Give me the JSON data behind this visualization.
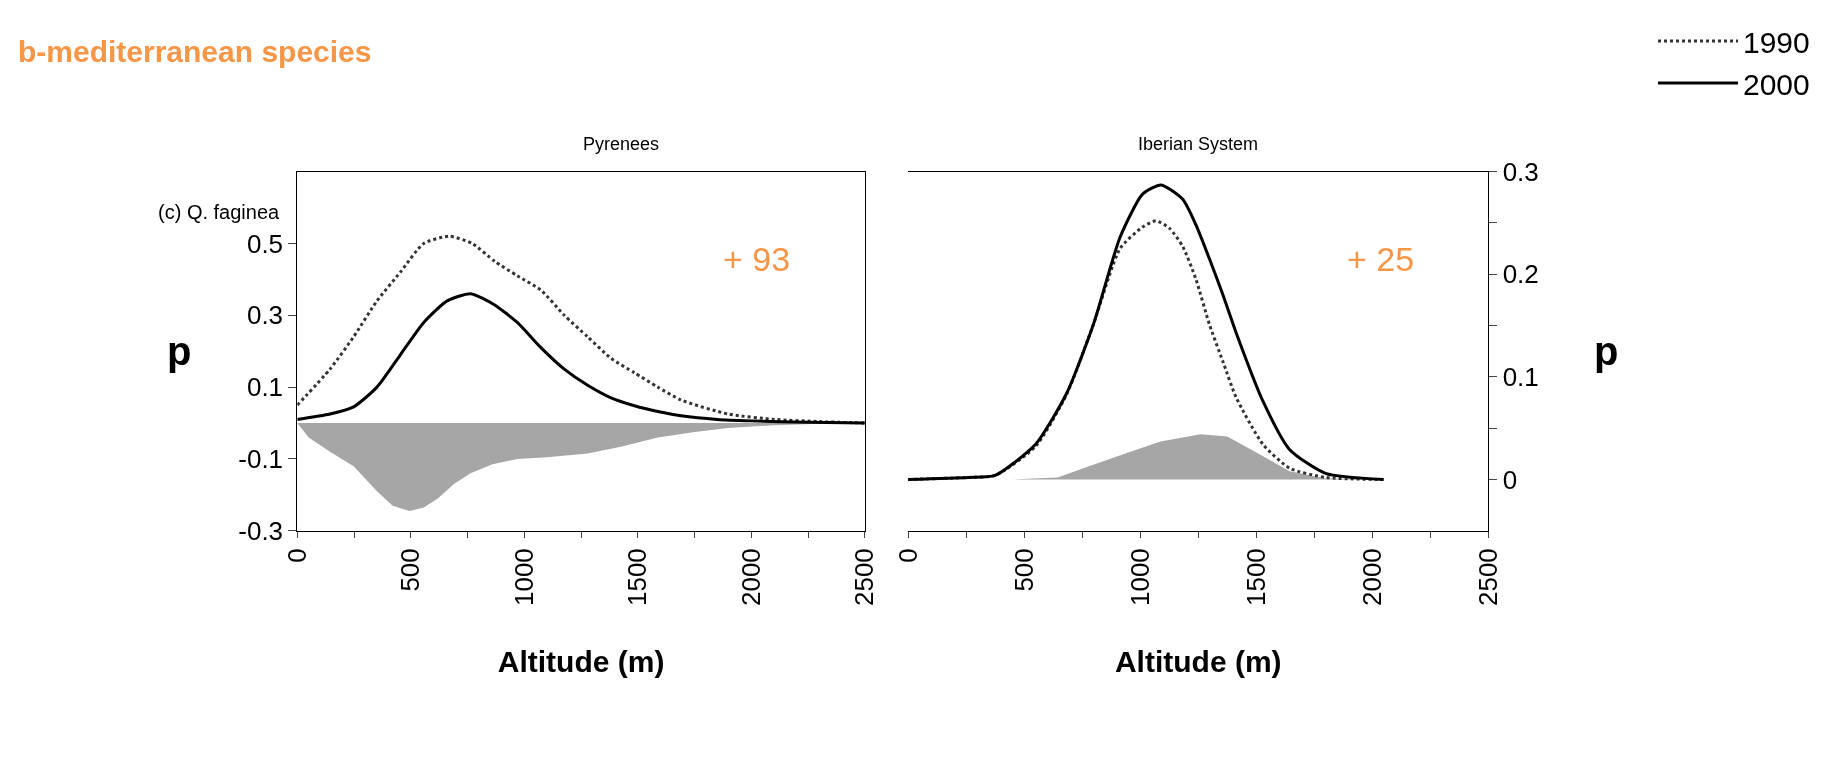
{
  "chart_data": [
    {
      "type": "line",
      "title": "b-mediterranean species",
      "subtitle": "Pyrenees",
      "xlabel": "Altitude (m)",
      "ylabel": "p",
      "annotations": [
        "(c) Q. faginea",
        "+ 93"
      ],
      "xlim": [
        0,
        2500
      ],
      "xticks": [
        0,
        {
          "value": 250,
          "label": null
        },
        500,
        {
          "value": 750,
          "label": null
        },
        1000,
        {
          "value": 1250,
          "label": null
        },
        1500,
        {
          "value": 1750,
          "label": null
        },
        2000,
        {
          "value": 2250,
          "label": null
        },
        2500
      ],
      "ylim": [
        -0.3,
        0.7
      ],
      "yticks": [
        -0.3,
        -0.1,
        0.1,
        0.3,
        0.5
      ],
      "legend": "top right",
      "marker": "none",
      "series": [
        {
          "type": "area",
          "color": "#a6a6a6",
          "x": [
            0,
            50,
            144,
            248,
            351,
            420,
            495,
            557,
            619,
            690,
            763,
            860,
            969,
            1100,
            1279,
            1430,
            1588,
            1750,
            1898,
            2100,
            2300,
            2500
          ],
          "values": [
            0,
            -0.04,
            -0.08,
            -0.12,
            -0.19,
            -0.23,
            -0.245,
            -0.235,
            -0.21,
            -0.17,
            -0.14,
            -0.115,
            -0.1,
            -0.095,
            -0.085,
            -0.065,
            -0.04,
            -0.025,
            -0.014,
            -0.006,
            -0.002,
            0
          ]
        },
        {
          "name": "1990",
          "color": "#333333",
          "line_style": "dotted",
          "x": [
            0,
            144,
            248,
            351,
            454,
            557,
            670,
            770,
            870,
            969,
            1073,
            1176,
            1279,
            1382,
            1485,
            1588,
            1691,
            1898,
            2104,
            2300,
            2500
          ],
          "values": [
            0.05,
            0.15,
            0.24,
            0.34,
            0.42,
            0.5,
            0.52,
            0.5,
            0.45,
            0.41,
            0.37,
            0.3,
            0.24,
            0.18,
            0.14,
            0.1,
            0.064,
            0.025,
            0.01,
            0.004,
            0
          ]
        },
        {
          "name": "2000",
          "color": "#000000",
          "line_style": "solid",
          "x": [
            0,
            144,
            248,
            351,
            454,
            557,
            660,
            763,
            866,
            969,
            1073,
            1176,
            1279,
            1382,
            1485,
            1588,
            1691,
            1850,
            2000,
            2250,
            2500
          ],
          "values": [
            0.01,
            0.025,
            0.045,
            0.1,
            0.19,
            0.28,
            0.34,
            0.36,
            0.33,
            0.28,
            0.21,
            0.15,
            0.105,
            0.07,
            0.048,
            0.032,
            0.02,
            0.01,
            0.006,
            0.002,
            0
          ]
        }
      ]
    },
    {
      "type": "line",
      "title": "Iberian System",
      "xlabel": "Altitude (m)",
      "y2label": "p",
      "annotations": [
        "+ 25"
      ],
      "xlim": [
        0,
        2500
      ],
      "xticks": [
        0,
        {
          "value": 250,
          "label": null
        },
        500,
        {
          "value": 750,
          "label": null
        },
        1000,
        {
          "value": 1250,
          "label": null
        },
        1500,
        {
          "value": 1750,
          "label": null
        },
        2000,
        {
          "value": 2250,
          "label": null
        },
        2500
      ],
      "y2lim": [
        -0.05,
        0.3
      ],
      "y2ticks": [
        0,
        {
          "value": 0.05,
          "label": null
        },
        0.1,
        {
          "value": 0.15,
          "label": null
        },
        0.2,
        {
          "value": 0.25,
          "label": null
        },
        0.3
      ],
      "marker": "none",
      "series": [
        {
          "type": "area",
          "axis": "y2",
          "color": "#a6a6a6",
          "x": [
            0,
            452,
            644,
            779,
            933,
            1087,
            1260,
            1375,
            1510,
            1644,
            1798,
            2048
          ],
          "values": [
            0,
            0,
            0.002,
            0.013,
            0.025,
            0.037,
            0.044,
            0.042,
            0.025,
            0.008,
            0.001,
            0
          ]
        },
        {
          "axis": "y2",
          "color": "#333333",
          "line_style": "dotted",
          "x": [
            0,
            260,
            375,
            548,
            683,
            798,
            913,
            1010,
            1067,
            1125,
            1183,
            1240,
            1298,
            1356,
            1413,
            1529,
            1644,
            1798,
            2048
          ],
          "values": [
            0,
            0.002,
            0.004,
            0.032,
            0.083,
            0.151,
            0.225,
            0.246,
            0.252,
            0.245,
            0.227,
            0.195,
            0.151,
            0.115,
            0.08,
            0.034,
            0.011,
            0.002,
            0
          ]
        },
        {
          "axis": "y2",
          "color": "#000000",
          "line_style": "solid",
          "x": [
            0,
            260,
            375,
            548,
            683,
            798,
            913,
            1010,
            1090,
            1183,
            1240,
            1298,
            1356,
            1413,
            1529,
            1644,
            1798,
            2048
          ],
          "values": [
            0,
            0.002,
            0.004,
            0.034,
            0.084,
            0.151,
            0.236,
            0.278,
            0.287,
            0.273,
            0.248,
            0.215,
            0.18,
            0.143,
            0.076,
            0.029,
            0.006,
            0
          ]
        }
      ]
    }
  ]
}
